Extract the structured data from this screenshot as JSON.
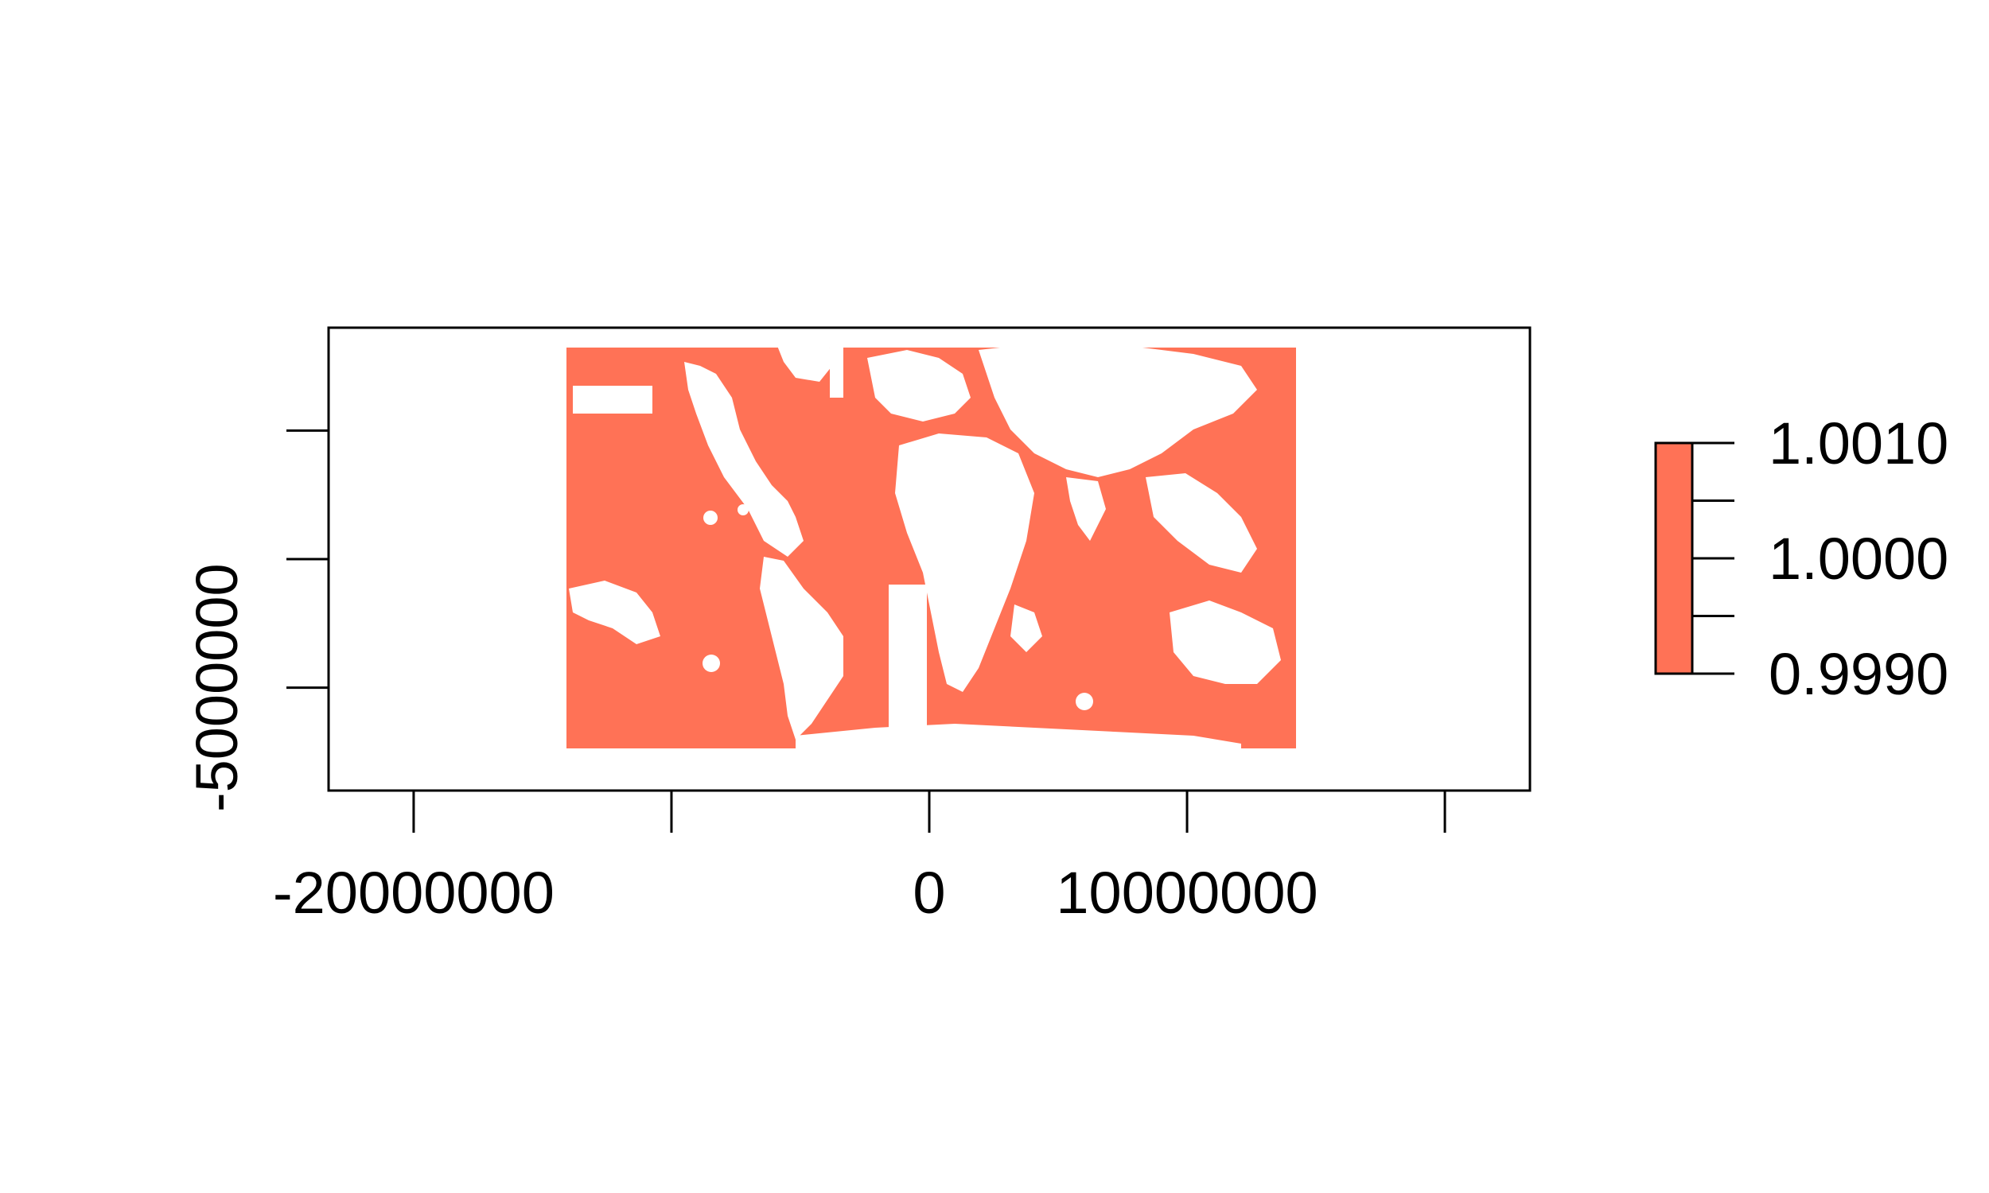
{
  "map": {
    "fill_color": "#FF7256",
    "background": "#FFFFFF",
    "x_ticks": [
      {
        "value": -20000000,
        "label": "-20000000"
      },
      {
        "value": -10000000,
        "label": ""
      },
      {
        "value": 0,
        "label": "0"
      },
      {
        "value": 10000000,
        "label": "10000000"
      },
      {
        "value": 20000000,
        "label": ""
      }
    ],
    "y_ticks": [
      {
        "value": 5000000,
        "label": ""
      },
      {
        "value": 0,
        "label": ""
      },
      {
        "value": -5000000,
        "label": "-5000000"
      }
    ],
    "xlim": [
      -23300000,
      23300000
    ],
    "ylim": [
      -9000000,
      9000000
    ],
    "raster_extent": {
      "xmin": -14200000,
      "xmax": 14200000,
      "ymin": -7200000,
      "ymax": 8300000
    }
  },
  "legend": {
    "color": "#FF7256",
    "range": [
      0.999,
      1.001
    ],
    "ticks": [
      {
        "value": 1.001,
        "label": "1.0010"
      },
      {
        "value": 1.0005,
        "label": ""
      },
      {
        "value": 1.0,
        "label": "1.0000"
      },
      {
        "value": 0.9995,
        "label": ""
      },
      {
        "value": 0.999,
        "label": "0.9990"
      }
    ]
  }
}
